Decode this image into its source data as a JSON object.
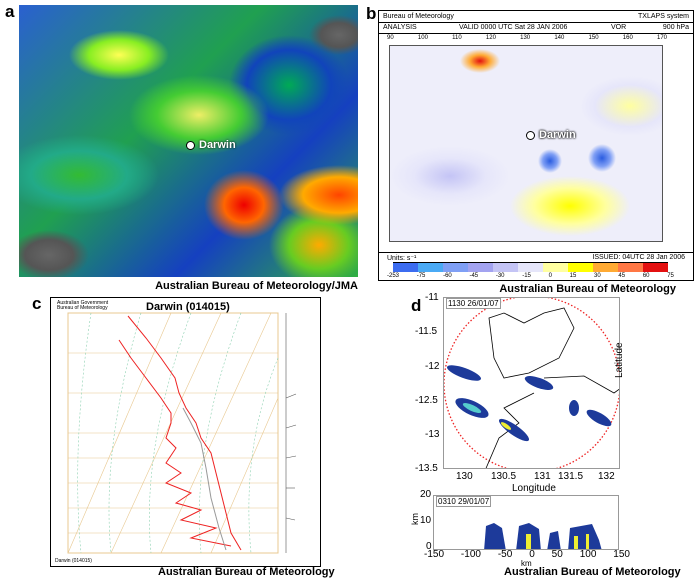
{
  "panels": {
    "a": {
      "label": "a",
      "marker": "Darwin",
      "credit": "Australian Bureau of Meteorology/JMA"
    },
    "b": {
      "label": "b",
      "header_left": "Bureau of Meteorology",
      "header_right": "TXLAPS system",
      "sub_analysis": "ANALYSIS",
      "sub_valid": "VALID  0000 UTC  Sat 28 JAN 2006",
      "sub_vor": "VOR",
      "sub_level": "900 hPa",
      "marker": "Darwin",
      "lon_ticks": [
        "90",
        "100",
        "110",
        "120",
        "130",
        "140",
        "150",
        "160",
        "170"
      ],
      "units": "Units: s⁻¹",
      "issued": "ISSUED: 04UTC     28 Jan 2006",
      "scale_labels": [
        "-253",
        "-75",
        "-60",
        "-45",
        "-30",
        "-15",
        "0",
        "15",
        "30",
        "45",
        "60",
        "75"
      ],
      "scale_colors": [
        "#3c6cf0",
        "#4aaaf5",
        "#7f9ff5",
        "#a3a3f0",
        "#c4c4f5",
        "#e6e6fa",
        "#ffffa0",
        "#ffff00",
        "#ffaa33",
        "#ff7744",
        "#e31010"
      ],
      "credit": "Australian Bureau of Meteorology"
    },
    "c": {
      "label": "c",
      "org": "Australian Government Bureau of Meteorology",
      "title": "Darwin (014015)",
      "footer_left": "Darwin (014015)",
      "credit": "Australian Bureau of Meteorology"
    },
    "d": {
      "label": "d",
      "timestamp_top": "1130 26/01/07",
      "y_ticks": [
        "-11",
        "-11.5",
        "-12",
        "-12.5",
        "-13",
        "-13.5"
      ],
      "x_ticks": [
        "130",
        "130.5",
        "131",
        "131.5",
        "132"
      ],
      "xlabel": "Longitude",
      "ylabel": "Latitude",
      "timestamp_bottom": "0310 29/01/07",
      "bottom_y_ticks": [
        "20",
        "10",
        "0"
      ],
      "bottom_ylabel": "km",
      "bottom_x_ticks": [
        "-150",
        "-100",
        "-50",
        "0",
        "50",
        "100",
        "150"
      ],
      "bottom_xlabel": "km",
      "credit": "Australian Bureau of Meteorology"
    }
  }
}
